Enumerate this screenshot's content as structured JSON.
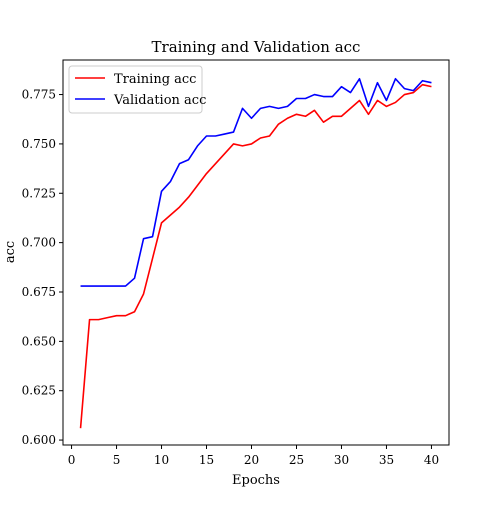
{
  "chart_data": {
    "type": "line",
    "title": "Training and Validation acc",
    "xlabel": "Epochs",
    "ylabel": "acc",
    "xlim": [
      -0.95,
      41.95
    ],
    "ylim": [
      0.5975,
      0.7925
    ],
    "x_ticks": [
      0,
      5,
      10,
      15,
      20,
      25,
      30,
      35,
      40
    ],
    "y_ticks": [
      0.6,
      0.625,
      0.65,
      0.675,
      0.7,
      0.725,
      0.75,
      0.775
    ],
    "x_tick_labels": [
      "0",
      "5",
      "10",
      "15",
      "20",
      "25",
      "30",
      "35",
      "40"
    ],
    "y_tick_labels": [
      "0.600",
      "0.625",
      "0.650",
      "0.675",
      "0.700",
      "0.725",
      "0.750",
      "0.775"
    ],
    "grid": false,
    "legend_position": "upper-left",
    "x": [
      1,
      2,
      3,
      4,
      5,
      6,
      7,
      8,
      9,
      10,
      11,
      12,
      13,
      14,
      15,
      16,
      17,
      18,
      19,
      20,
      21,
      22,
      23,
      24,
      25,
      26,
      27,
      28,
      29,
      30,
      31,
      32,
      33,
      34,
      35,
      36,
      37,
      38,
      39,
      40
    ],
    "series": [
      {
        "name": "Training acc",
        "color": "#ff0000",
        "values": [
          0.606,
          0.661,
          0.661,
          0.662,
          0.663,
          0.663,
          0.665,
          0.674,
          0.692,
          0.71,
          0.714,
          0.718,
          0.723,
          0.729,
          0.735,
          0.74,
          0.745,
          0.75,
          0.749,
          0.75,
          0.753,
          0.754,
          0.76,
          0.763,
          0.765,
          0.764,
          0.767,
          0.761,
          0.764,
          0.764,
          0.768,
          0.772,
          0.765,
          0.772,
          0.769,
          0.771,
          0.775,
          0.776,
          0.78,
          0.779
        ]
      },
      {
        "name": "Validation acc",
        "color": "#0000ff",
        "values": [
          0.678,
          0.678,
          0.678,
          0.678,
          0.678,
          0.678,
          0.682,
          0.702,
          0.703,
          0.726,
          0.731,
          0.74,
          0.742,
          0.749,
          0.754,
          0.754,
          0.755,
          0.756,
          0.768,
          0.763,
          0.768,
          0.769,
          0.768,
          0.769,
          0.773,
          0.773,
          0.775,
          0.774,
          0.774,
          0.779,
          0.776,
          0.783,
          0.769,
          0.781,
          0.772,
          0.783,
          0.778,
          0.777,
          0.782,
          0.781
        ]
      }
    ]
  }
}
